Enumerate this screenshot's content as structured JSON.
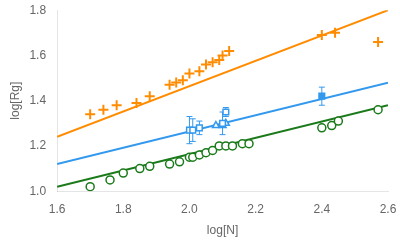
{
  "chart_data": {
    "type": "scatter",
    "xlabel": "log[N]",
    "ylabel": "log[Rg]",
    "xlim": [
      1.6,
      2.6
    ],
    "ylim": [
      1.0,
      1.8
    ],
    "xticks": [
      1.6,
      1.8,
      {
        "value": 2.0,
        "label": "2.0"
      },
      2.2,
      2.4,
      2.6
    ],
    "yticks": [
      {
        "value": 1.0,
        "label": "1.0"
      },
      1.2,
      1.4,
      1.6,
      1.8
    ],
    "grid": false,
    "series": [
      {
        "type": "line",
        "color": "#FF8C00",
        "x": [
          1.6,
          2.6
        ],
        "values": [
          1.24,
          1.8
        ]
      },
      {
        "type": "line",
        "color": "#3399EE",
        "x": [
          1.6,
          2.6
        ],
        "values": [
          1.12,
          1.48
        ]
      },
      {
        "type": "line",
        "color": "#1A7A1A",
        "x": [
          1.6,
          2.6
        ],
        "values": [
          1.02,
          1.38
        ]
      },
      {
        "type": "scatter",
        "marker": "plus",
        "color": "#FF8C00",
        "x": [
          1.7,
          1.74,
          1.78,
          1.84,
          1.88,
          1.94,
          1.96,
          1.98,
          2.0,
          2.03,
          2.05,
          2.07,
          2.09,
          2.1,
          2.12,
          2.4,
          2.44,
          2.57
        ],
        "values": [
          1.34,
          1.36,
          1.38,
          1.39,
          1.42,
          1.47,
          1.48,
          1.49,
          1.52,
          1.53,
          1.56,
          1.57,
          1.58,
          1.6,
          1.62,
          1.69,
          1.7,
          1.66
        ]
      },
      {
        "type": "scatter",
        "marker": "square-open",
        "color": "#3399EE",
        "x": [
          2.0,
          2.01,
          2.03,
          2.1,
          2.11
        ],
        "values": [
          1.27,
          1.27,
          1.28,
          1.3,
          1.35
        ],
        "yerr": [
          0.06,
          0.05,
          0.03,
          0.05,
          0.02
        ]
      },
      {
        "type": "scatter",
        "marker": "square",
        "color": "#3399EE",
        "x": [
          2.4
        ],
        "values": [
          1.42
        ],
        "yerr": [
          0.04
        ]
      },
      {
        "type": "scatter",
        "marker": "triangle-open",
        "color": "#3399EE",
        "x": [
          2.08,
          2.1,
          2.11
        ],
        "values": [
          1.29,
          1.29,
          1.3
        ]
      },
      {
        "type": "scatter",
        "marker": "circle-open",
        "color": "#1A7A1A",
        "x": [
          1.7,
          1.76,
          1.8,
          1.85,
          1.88,
          1.94,
          1.97,
          2.0,
          2.01,
          2.03,
          2.05,
          2.07,
          2.09,
          2.11,
          2.13,
          2.16,
          2.18,
          2.4,
          2.43,
          2.45,
          2.57
        ],
        "values": [
          1.02,
          1.05,
          1.08,
          1.1,
          1.11,
          1.12,
          1.13,
          1.15,
          1.15,
          1.16,
          1.17,
          1.18,
          1.2,
          1.2,
          1.2,
          1.21,
          1.21,
          1.28,
          1.29,
          1.31,
          1.36
        ]
      }
    ]
  }
}
